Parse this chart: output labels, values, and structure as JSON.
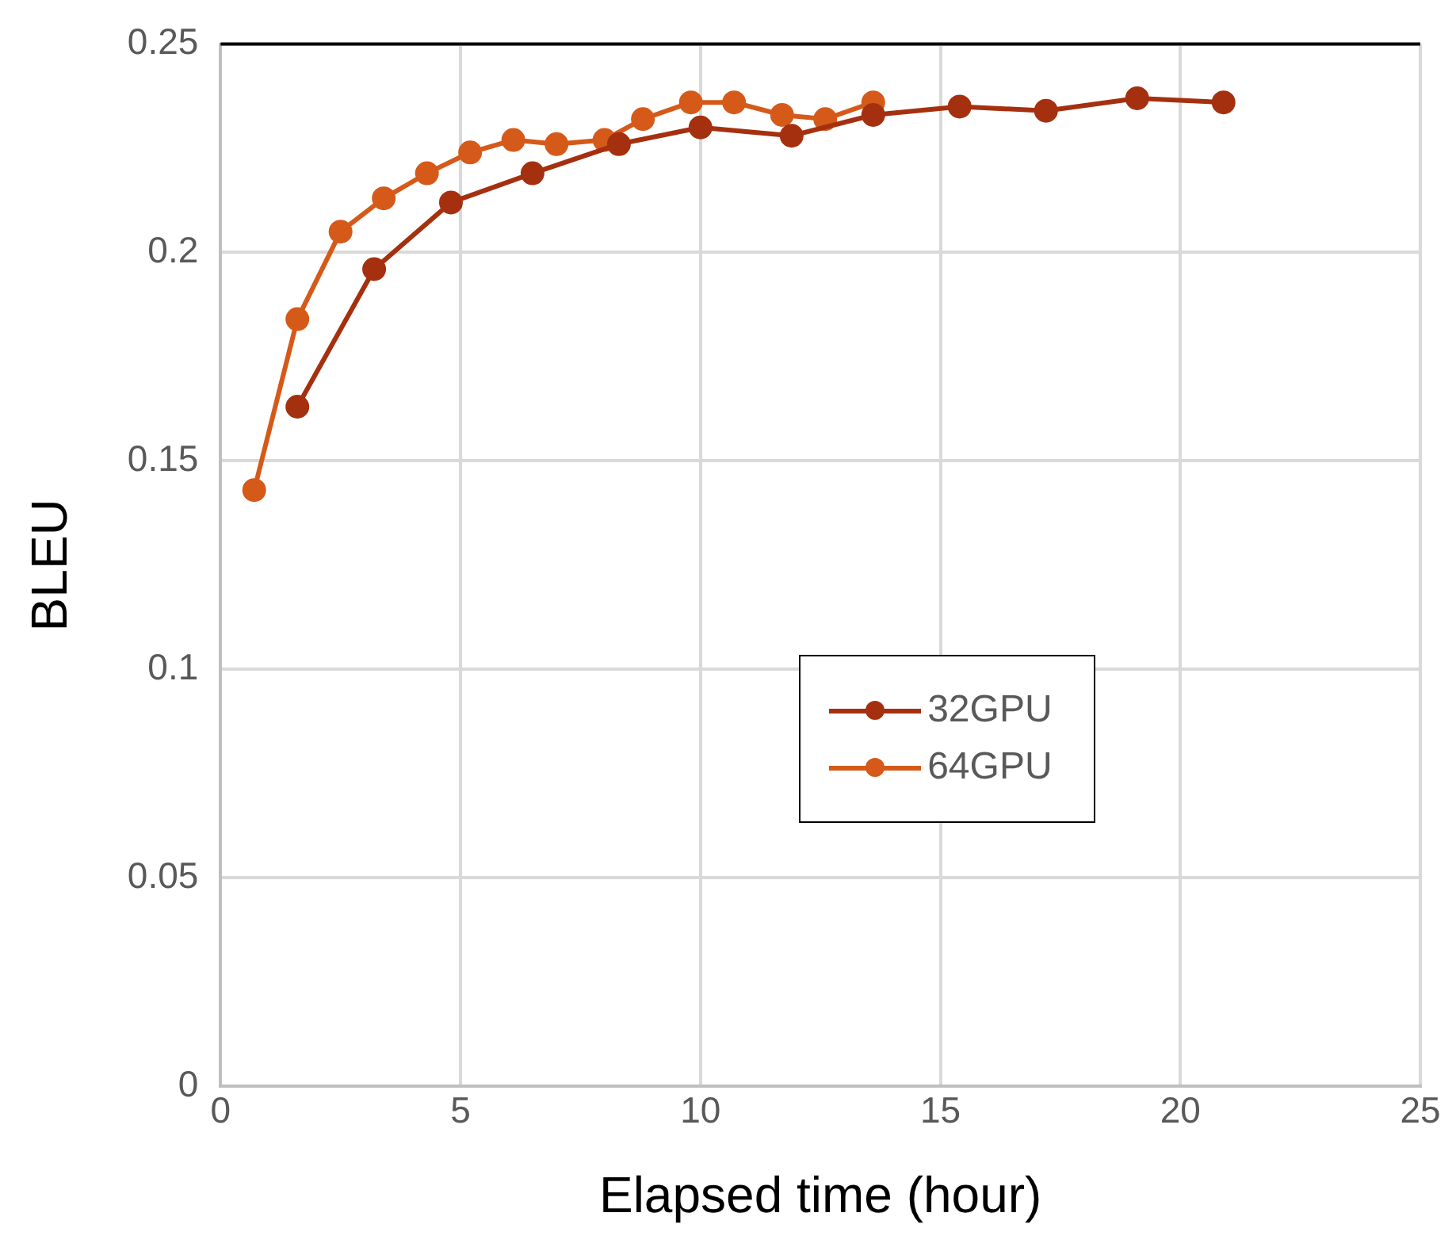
{
  "chart_data": {
    "type": "line",
    "xlabel": "Elapsed time (hour)",
    "ylabel": "BLEU",
    "xlim": [
      0,
      25
    ],
    "xticks": [
      0,
      5,
      10,
      15,
      20,
      25
    ],
    "ylim": [
      0,
      0.25
    ],
    "yticks": [
      0,
      0.05,
      0.1,
      0.15,
      0.2,
      0.25
    ],
    "grid": true,
    "legend": "center",
    "marker": "circle",
    "line_style": "solid",
    "series": [
      {
        "name": "32GPU",
        "color": "#a5300f",
        "x": [
          1.6,
          3.2,
          4.8,
          6.5,
          8.3,
          10,
          11.9,
          13.6,
          15.4,
          17.2,
          19.1,
          20.9
        ],
        "values": [
          0.163,
          0.196,
          0.212,
          0.219,
          0.226,
          0.23,
          0.228,
          0.233,
          0.235,
          0.234,
          0.237,
          0.236
        ]
      },
      {
        "name": "64GPU",
        "color": "#d55a1a",
        "x": [
          0.7,
          1.6,
          2.5,
          3.4,
          4.3,
          5.2,
          6.1,
          7,
          8,
          8.8,
          9.8,
          10.7,
          11.7,
          12.6,
          13.6
        ],
        "values": [
          0.143,
          0.184,
          0.205,
          0.213,
          0.219,
          0.224,
          0.227,
          0.226,
          0.227,
          0.232,
          0.236,
          0.236,
          0.233,
          0.232,
          0.236
        ]
      }
    ]
  }
}
